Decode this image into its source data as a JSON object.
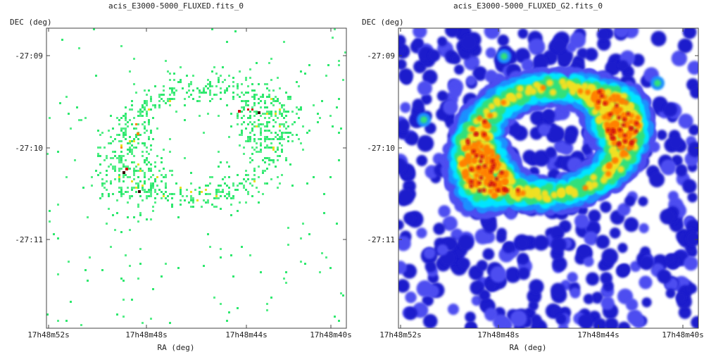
{
  "chart_data": [
    {
      "type": "heatmap",
      "title": "acis_E3000-5000_FLUXED.fits_0",
      "xlabel": "RA (deg)",
      "ylabel": "DEC (deg)",
      "x_ticks": [
        "17h48m52s",
        "17h48m48s",
        "17h48m44s",
        "17h48m40s"
      ],
      "y_ticks": [
        "-27:09",
        "-27:10",
        "-27:11"
      ],
      "style": "sparse-pixels",
      "background": "#ffffff",
      "colors": [
        "#2ee86e",
        "#55ee88",
        "#e8e020",
        "#ff8a00",
        "#d01010",
        "#3a0000"
      ],
      "grid": false
    },
    {
      "type": "heatmap",
      "title": "acis_E3000-5000_FLUXED_G2.fits_0",
      "xlabel": "RA (deg)",
      "ylabel": "DEC (deg)",
      "x_ticks": [
        "17h48m52s",
        "17h48m48s",
        "17h48m44s",
        "17h48m40s"
      ],
      "y_ticks": [
        "-27:09",
        "-27:10",
        "-27:11"
      ],
      "style": "gaussian-smoothed",
      "background": "#ffffff",
      "colors": [
        "#1a1acc",
        "#4d4df0",
        "#1e90ff",
        "#00e5ff",
        "#33e07a",
        "#f0e020",
        "#ff8000",
        "#d01010"
      ],
      "grid": false
    }
  ]
}
